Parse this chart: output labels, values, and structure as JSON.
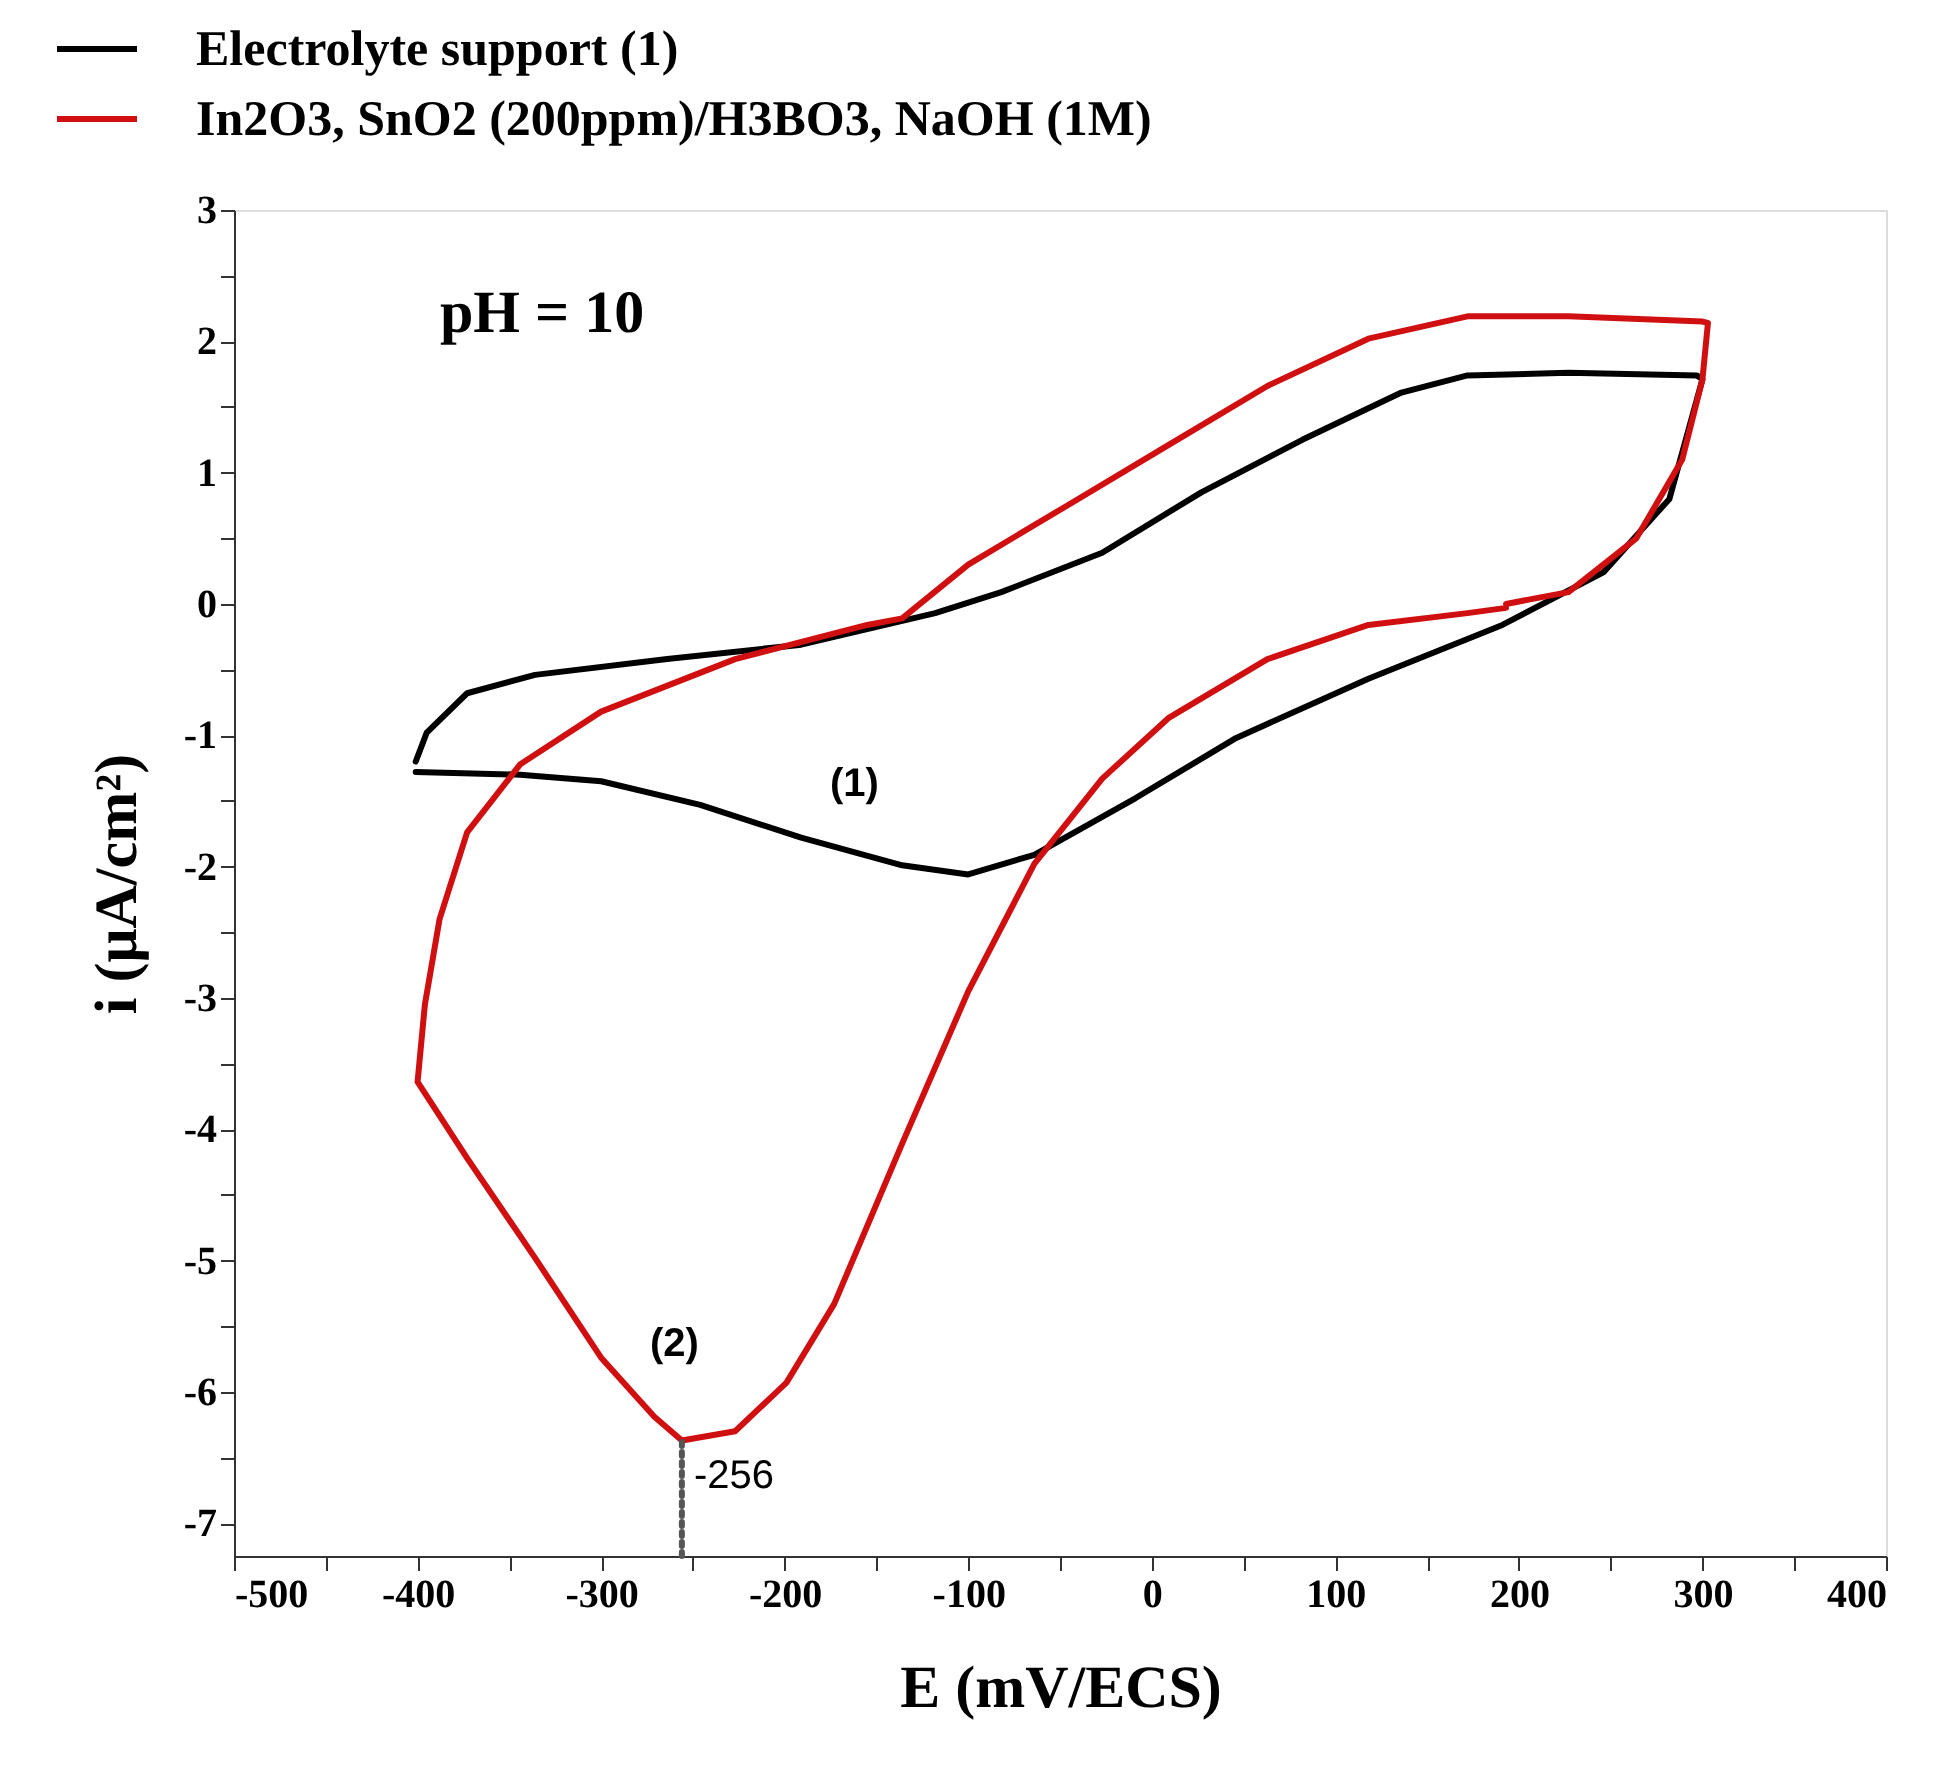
{
  "chart_data": {
    "type": "line",
    "xlabel": "E (mV/ECS)",
    "ylabel": "i (μA/cm²)",
    "xlim": [
      -500,
      400
    ],
    "ylim": [
      -7.25,
      3
    ],
    "xticks": [
      -500,
      {
        "value": -450,
        "label": null
      },
      -400,
      {
        "value": -350,
        "label": null
      },
      -300,
      {
        "value": -250,
        "label": null
      },
      -200,
      {
        "value": -150,
        "label": null
      },
      -100,
      {
        "value": -50,
        "label": null
      },
      0,
      {
        "value": 50,
        "label": null
      },
      100,
      {
        "value": 150,
        "label": null
      },
      200,
      {
        "value": 250,
        "label": null
      },
      300,
      {
        "value": 350,
        "label": null
      },
      400
    ],
    "yticks": [
      -7,
      {
        "value": -6.5,
        "label": null
      },
      -6,
      {
        "value": -5.5,
        "label": null
      },
      -5,
      {
        "value": -4.5,
        "label": null
      },
      -4,
      {
        "value": -3.5,
        "label": null
      },
      -3,
      {
        "value": -2.5,
        "label": null
      },
      -2,
      {
        "value": -1.5,
        "label": null
      },
      -1,
      {
        "value": -0.5,
        "label": null
      },
      0,
      {
        "value": 0.5,
        "label": null
      },
      1,
      {
        "value": 1.5,
        "label": null
      },
      2,
      {
        "value": 2.5,
        "label": null
      },
      3
    ],
    "grid": false,
    "legend": "top left",
    "marker": "none",
    "line_style": "solid",
    "annotations": [
      "pH = 10",
      "(1)",
      "(2)",
      {
        "text": "-256",
        "x": -256,
        "y": -6.37
      }
    ],
    "series": [
      {
        "name": "Electrolyte support  (1)",
        "color": "#000000",
        "x": [
          -401,
          -344,
          -300,
          -246,
          -191,
          -136,
          -100,
          -64,
          -9,
          46,
          118,
          191,
          246,
          282,
          300,
          297,
          227,
          172,
          136,
          82,
          27,
          -27,
          -82,
          -118,
          -191,
          -264,
          -336,
          -373,
          -395,
          -401
        ],
        "values": [
          -1.28,
          -1.3,
          -1.35,
          -1.53,
          -1.78,
          -1.99,
          -2.06,
          -1.91,
          -1.48,
          -1.02,
          -0.57,
          -0.16,
          0.24,
          0.8,
          1.71,
          1.74,
          1.76,
          1.74,
          1.61,
          1.25,
          0.85,
          0.39,
          0.09,
          -0.07,
          -0.31,
          -0.42,
          -0.54,
          -0.68,
          -0.98,
          -1.2
        ]
      },
      {
        "name": "In2O3, SnO2 (200ppm)/H3BO3, NaOH (1M)",
        "color": "#d01010",
        "x": [
          193,
          227,
          264,
          289,
          300,
          303,
          300,
          227,
          172,
          118,
          63,
          9,
          -46,
          -100,
          -136,
          -155,
          -227,
          -300,
          -344,
          -373,
          -388,
          -396,
          -400,
          -373,
          -336,
          -300,
          -271,
          -256,
          -227,
          -199,
          -173,
          -136,
          -100,
          -64,
          -27,
          9,
          63,
          118,
          172,
          193
        ],
        "values": [
          0.0,
          0.09,
          0.5,
          1.1,
          1.71,
          2.14,
          2.15,
          2.19,
          2.19,
          2.02,
          1.66,
          1.21,
          0.75,
          0.3,
          -0.11,
          -0.16,
          -0.42,
          -0.82,
          -1.22,
          -1.74,
          -2.4,
          -3.05,
          -3.64,
          -4.22,
          -4.98,
          -5.74,
          -6.19,
          -6.37,
          -6.3,
          -5.93,
          -5.33,
          -4.11,
          -2.95,
          -1.98,
          -1.33,
          -0.87,
          -0.42,
          -0.16,
          -0.07,
          -0.03
        ]
      },
      {
        "type": "line",
        "line_style": "dotted",
        "color": "#555555",
        "x": [
          -256,
          -256
        ],
        "values": [
          -7.25,
          -6.37
        ]
      }
    ]
  }
}
